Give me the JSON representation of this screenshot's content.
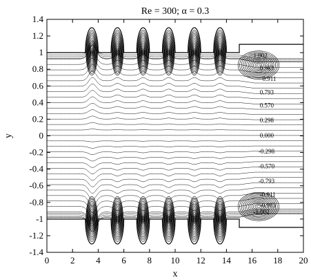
{
  "chart_data": {
    "type": "line",
    "title": "Re = 300; α = 0.3",
    "xlabel": "x",
    "ylabel": "y",
    "xlim": [
      0,
      20
    ],
    "ylim": [
      -1.4,
      1.4
    ],
    "x_ticks": [
      0,
      2,
      4,
      6,
      8,
      10,
      12,
      14,
      16,
      18,
      20
    ],
    "x_tick_labels": [
      "0",
      "2",
      "4",
      "6",
      "8",
      "10",
      "12",
      "14",
      "16",
      "18",
      "20"
    ],
    "y_ticks": [
      -1.4,
      -1.2,
      -1,
      -0.8,
      -0.6,
      -0.4,
      -0.2,
      0,
      0.2,
      0.4,
      0.6,
      0.8,
      1,
      1.2,
      1.4
    ],
    "y_tick_labels": [
      "-1.4",
      "-1.2",
      "-1",
      "-0.8",
      "-0.6",
      "-0.4",
      "-0.2",
      "0",
      "0.2",
      "0.4",
      "0.6",
      "0.8",
      "1",
      "1.2",
      "1.4"
    ],
    "grid": false,
    "channel": {
      "half_width": 1.0,
      "cavity_depth": 0.3,
      "cavity_centers": [
        3.5,
        5.5,
        7.5,
        9.5,
        11.5,
        13.5
      ],
      "cavity_half_width": 0.5,
      "step_start": 15.0,
      "step_end": 20.0,
      "step_height": 0.1
    },
    "streamline_labels": [
      {
        "text": "0.983",
        "x": 16.6,
        "y": 0.79
      },
      {
        "text": "0.911",
        "x": 16.8,
        "y": 0.66
      },
      {
        "text": "0.793",
        "x": 16.6,
        "y": 0.5
      },
      {
        "text": "0.570",
        "x": 16.6,
        "y": 0.34
      },
      {
        "text": "0.298",
        "x": 16.6,
        "y": 0.16
      },
      {
        "text": "0.000",
        "x": 16.6,
        "y": -0.02
      },
      {
        "text": "-0.298",
        "x": 16.5,
        "y": -0.21
      },
      {
        "text": "-0.570",
        "x": 16.5,
        "y": -0.39
      },
      {
        "text": "-0.793",
        "x": 16.5,
        "y": -0.57
      },
      {
        "text": "-0.911",
        "x": 16.6,
        "y": -0.73
      },
      {
        "text": "-0.983",
        "x": 16.6,
        "y": -0.86
      },
      {
        "text": "1.002",
        "x": 16.1,
        "y": 0.94
      },
      {
        "text": "-1.002",
        "x": 16.1,
        "y": -0.94
      }
    ],
    "streamline_levels": [
      -0.983,
      -0.911,
      -0.793,
      -0.57,
      -0.298,
      0.0,
      0.298,
      0.57,
      0.793,
      0.911,
      0.983
    ]
  }
}
